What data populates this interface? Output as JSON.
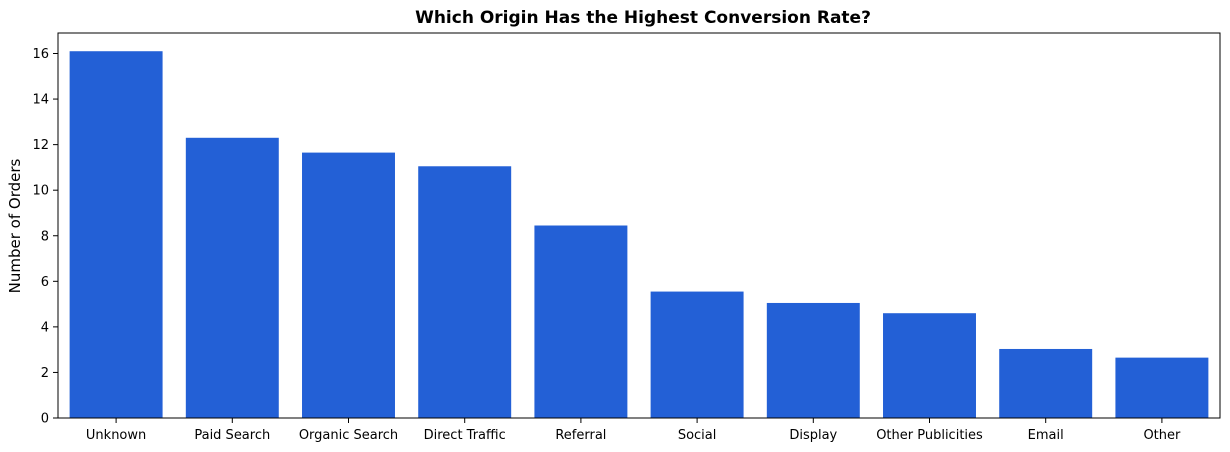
{
  "chart_data": {
    "type": "bar",
    "title": "Which Origin Has the Highest Conversion Rate?",
    "xlabel": "",
    "ylabel": "Number of Orders",
    "categories": [
      "Unknown",
      "Paid Search",
      "Organic Search",
      "Direct Traffic",
      "Referral",
      "Social",
      "Display",
      "Other Publicities",
      "Email",
      "Other"
    ],
    "values": [
      16.1,
      12.3,
      11.65,
      11.05,
      8.45,
      5.55,
      5.05,
      4.6,
      3.03,
      2.65
    ],
    "ylim": [
      0,
      16.9
    ],
    "yticks": [
      0,
      2,
      4,
      6,
      8,
      10,
      12,
      14,
      16
    ],
    "grid": false,
    "legend": "none",
    "bar_color": "#2360d6"
  }
}
